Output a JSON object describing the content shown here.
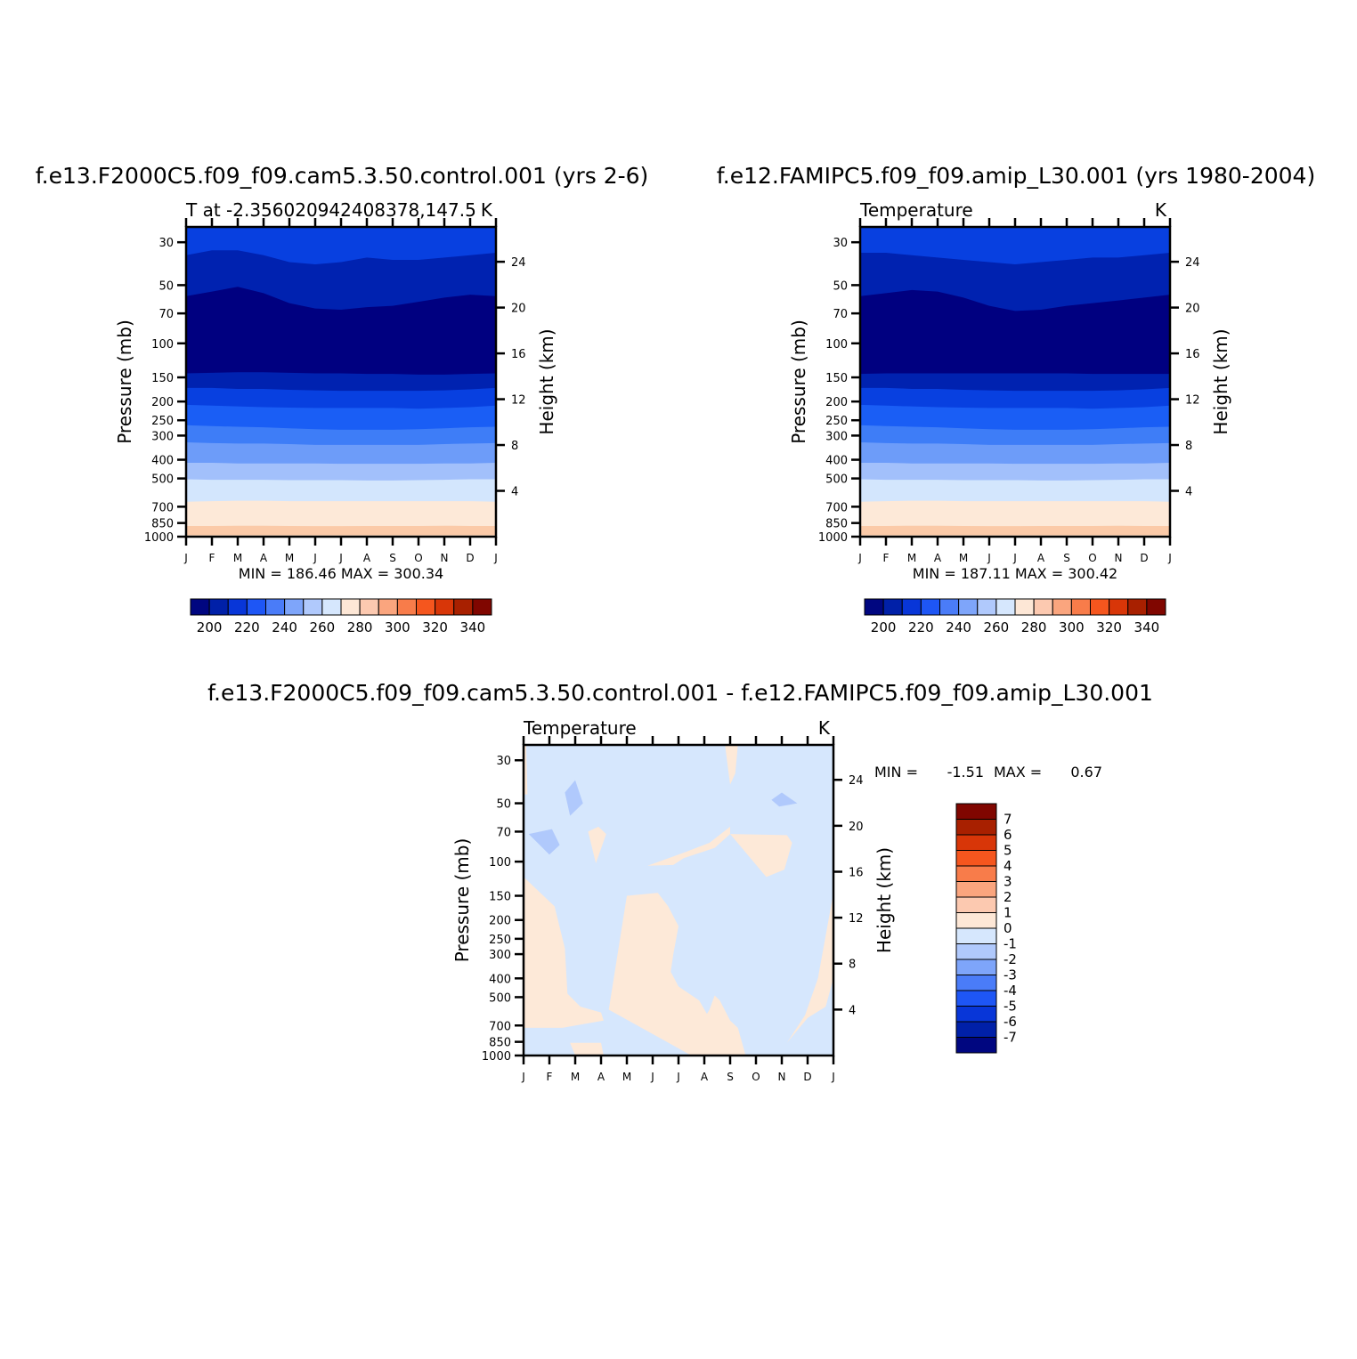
{
  "chart_data": [
    {
      "type": "heatmap",
      "title": "f.e13.F2000C5.f09_f09.cam5.3.50.control.001 (yrs 2-6)",
      "subtitle_left": "T at -2.356020942408378,147.5",
      "subtitle_right": "K",
      "xlabel": "",
      "ylabel": "Pressure (mb)",
      "ylabel_right": "Height (km)",
      "x_tick_labels": [
        "J",
        "F",
        "M",
        "A",
        "M",
        "J",
        "J",
        "A",
        "S",
        "O",
        "N",
        "D",
        "J"
      ],
      "y_ticks_pressure": [
        30,
        50,
        70,
        100,
        150,
        200,
        250,
        300,
        400,
        500,
        700,
        850,
        1000
      ],
      "y_ticks_height": [
        4,
        8,
        12,
        16,
        20,
        24
      ],
      "ylim": [
        1000,
        25
      ],
      "stats": "MIN = 186.46  MAX = 300.34",
      "colorbar_labels": [
        "200",
        "220",
        "240",
        "260",
        "280",
        "300",
        "320",
        "340"
      ],
      "levels_bottom_to_top": [
        300,
        290,
        280,
        270,
        260,
        250,
        240,
        230,
        220,
        210,
        200,
        190
      ],
      "boundary_profile_hpa": {
        "b_290": [
          880,
          880,
          878,
          878,
          880,
          882,
          882,
          880,
          880,
          880,
          878,
          880,
          880
        ],
        "b_280": [
          660,
          655,
          652,
          652,
          655,
          655,
          655,
          655,
          655,
          655,
          655,
          655,
          660
        ],
        "b_270": [
          505,
          508,
          508,
          508,
          510,
          510,
          510,
          512,
          512,
          510,
          508,
          505,
          505
        ],
        "b_260": [
          415,
          415,
          418,
          418,
          418,
          418,
          420,
          420,
          420,
          420,
          418,
          418,
          415
        ],
        "b_250": [
          325,
          328,
          330,
          330,
          332,
          335,
          335,
          335,
          335,
          335,
          332,
          330,
          328
        ],
        "b_240": [
          265,
          268,
          270,
          272,
          275,
          278,
          280,
          280,
          280,
          278,
          275,
          272,
          270
        ],
        "b_230": [
          208,
          210,
          212,
          214,
          215,
          216,
          216,
          216,
          216,
          218,
          216,
          214,
          210
        ],
        "b_220": [
          170,
          170,
          172,
          172,
          174,
          175,
          176,
          176,
          176,
          176,
          175,
          173,
          170
        ],
        "b_210": [
          143,
          142,
          141,
          141,
          142,
          143,
          143,
          144,
          144,
          145,
          145,
          144,
          143
        ],
        "b_200": [
          57,
          54,
          51,
          55,
          62,
          66,
          67,
          65,
          64,
          61,
          58,
          56,
          57
        ],
        "b_190": [
          35,
          33,
          33,
          35,
          38,
          39,
          38,
          36,
          37,
          37,
          36,
          35,
          34
        ]
      }
    },
    {
      "type": "heatmap",
      "title": "f.e12.FAMIPC5.f09_f09.amip_L30.001 (yrs 1980-2004)",
      "subtitle_left": "Temperature",
      "subtitle_right": "K",
      "xlabel": "",
      "ylabel": "Pressure (mb)",
      "ylabel_right": "Height (km)",
      "x_tick_labels": [
        "J",
        "F",
        "M",
        "A",
        "M",
        "J",
        "J",
        "A",
        "S",
        "O",
        "N",
        "D",
        "J"
      ],
      "y_ticks_pressure": [
        30,
        50,
        70,
        100,
        150,
        200,
        250,
        300,
        400,
        500,
        700,
        850,
        1000
      ],
      "y_ticks_height": [
        4,
        8,
        12,
        16,
        20,
        24
      ],
      "ylim": [
        1000,
        25
      ],
      "stats": "MIN = 187.11  MAX = 300.42",
      "colorbar_labels": [
        "200",
        "220",
        "240",
        "260",
        "280",
        "300",
        "320",
        "340"
      ],
      "levels_bottom_to_top": [
        300,
        290,
        280,
        270,
        260,
        250,
        240,
        230,
        220,
        210,
        200,
        190
      ],
      "boundary_profile_hpa": {
        "b_290": [
          880,
          880,
          878,
          878,
          880,
          882,
          882,
          880,
          880,
          880,
          878,
          880,
          880
        ],
        "b_280": [
          660,
          655,
          652,
          652,
          655,
          655,
          655,
          655,
          655,
          655,
          655,
          655,
          660
        ],
        "b_270": [
          505,
          508,
          508,
          508,
          510,
          510,
          510,
          512,
          512,
          510,
          508,
          505,
          505
        ],
        "b_260": [
          415,
          415,
          418,
          418,
          418,
          418,
          420,
          420,
          420,
          420,
          418,
          418,
          415
        ],
        "b_250": [
          325,
          328,
          330,
          330,
          332,
          335,
          335,
          335,
          335,
          335,
          332,
          330,
          328
        ],
        "b_240": [
          265,
          268,
          270,
          272,
          275,
          278,
          280,
          280,
          280,
          278,
          275,
          272,
          270
        ],
        "b_230": [
          208,
          210,
          212,
          214,
          215,
          216,
          216,
          216,
          216,
          218,
          216,
          214,
          210
        ],
        "b_220": [
          170,
          170,
          172,
          172,
          174,
          175,
          176,
          176,
          176,
          176,
          175,
          173,
          170
        ],
        "b_210": [
          144,
          143,
          143,
          143,
          143,
          143,
          143,
          143,
          143,
          144,
          144,
          144,
          144
        ],
        "b_200": [
          57,
          55,
          53,
          54,
          58,
          64,
          68,
          67,
          64,
          62,
          60,
          58,
          56
        ],
        "b_190": [
          34,
          34,
          35,
          36,
          37,
          38,
          39,
          38,
          37,
          36,
          36,
          35,
          34
        ]
      }
    },
    {
      "type": "heatmap",
      "title": "f.e13.F2000C5.f09_f09.cam5.3.50.control.001 - f.e12.FAMIPC5.f09_f09.amip_L30.001",
      "subtitle_left": "Temperature",
      "subtitle_right": "K",
      "xlabel": "",
      "ylabel": "Pressure (mb)",
      "ylabel_right": "Height (km)",
      "x_tick_labels": [
        "J",
        "F",
        "M",
        "A",
        "M",
        "J",
        "J",
        "A",
        "S",
        "O",
        "N",
        "D",
        "J"
      ],
      "y_ticks_pressure": [
        30,
        50,
        70,
        100,
        150,
        200,
        250,
        300,
        400,
        500,
        700,
        850,
        1000
      ],
      "y_ticks_height": [
        4,
        8,
        12,
        16,
        20,
        24
      ],
      "ylim": [
        1000,
        25
      ],
      "stats_min_label": "MIN =",
      "stats_min_value": "-1.51",
      "stats_max_label": "MAX =",
      "stats_max_value": "0.67",
      "colorbar_labels_top_to_bottom": [
        "7",
        "6",
        "5",
        "4",
        "3",
        "2",
        "1",
        "0",
        "-1",
        "-2",
        "-3",
        "-4",
        "-5",
        "-6",
        "-7"
      ],
      "background_level": "-1 to 0",
      "positive_regions_0_to_1": [
        {
          "x_month": [
            0,
            0.1,
            0.15,
            0
          ],
          "p_hpa": [
            25,
            25,
            45,
            45
          ]
        },
        {
          "x_month": [
            0,
            1.2,
            1.6,
            1.7,
            2.2,
            3.0,
            3.1,
            1.5,
            0
          ],
          "p_hpa": [
            120,
            170,
            280,
            480,
            560,
            600,
            660,
            720,
            720
          ]
        },
        {
          "x_month": [
            1.8,
            3.0,
            3.1,
            2.0,
            1.8
          ],
          "p_hpa": [
            860,
            860,
            1000,
            1000,
            860
          ]
        },
        {
          "x_month": [
            3.3,
            4.0,
            5.2,
            5.6,
            6.0,
            5.8,
            5.7,
            6.0,
            6.8,
            7.1,
            7.2,
            7.4,
            7.6,
            8.0,
            8.3,
            8.6,
            8.0,
            6.5,
            3.3
          ],
          "p_hpa": [
            580,
            150,
            145,
            170,
            215,
            300,
            370,
            440,
            520,
            610,
            580,
            490,
            520,
            660,
            720,
            1000,
            1000,
            1000,
            580
          ]
        },
        {
          "x_month": [
            4.8,
            6.2,
            7.2,
            8.0,
            8.0,
            7.4,
            6.2,
            5.8,
            4.8
          ],
          "p_hpa": [
            105,
            90,
            80,
            66,
            72,
            85,
            96,
            104,
            105
          ]
        },
        {
          "x_month": [
            8.0,
            10.2,
            10.4,
            10.1,
            9.4,
            8.0
          ],
          "p_hpa": [
            72,
            73,
            80,
            110,
            120,
            72
          ]
        },
        {
          "x_month": [
            6.0,
            7.0,
            7.4,
            7.0,
            6.1
          ],
          "p_hpa": [
            820,
            810,
            860,
            880,
            870
          ]
        },
        {
          "x_month": [
            2.5,
            2.9,
            3.2,
            2.8,
            2.5
          ],
          "p_hpa": [
            70,
            66,
            72,
            102,
            70
          ]
        },
        {
          "x_month": [
            7.8,
            8.3,
            8.2,
            8.0,
            7.8
          ],
          "p_hpa": [
            25,
            25,
            35,
            40,
            25
          ]
        },
        {
          "x_month": [
            10.2,
            11.0,
            11.7,
            12.0,
            12.0,
            11.4,
            10.9,
            10.2
          ],
          "p_hpa": [
            860,
            640,
            560,
            400,
            145,
            400,
            620,
            860
          ]
        }
      ],
      "negative_regions_minus1_to_minus2": [
        {
          "x_month": [
            1.6,
            2.0,
            2.3,
            1.8,
            1.6
          ],
          "p_hpa": [
            44,
            38,
            50,
            58,
            44
          ]
        },
        {
          "x_month": [
            0.2,
            1.1,
            1.4,
            1.0,
            0.2
          ],
          "p_hpa": [
            72,
            68,
            82,
            92,
            72
          ]
        },
        {
          "x_month": [
            9.6,
            10.0,
            10.6,
            9.9,
            9.6
          ],
          "p_hpa": [
            48,
            44,
            50,
            52,
            48
          ]
        }
      ]
    }
  ]
}
